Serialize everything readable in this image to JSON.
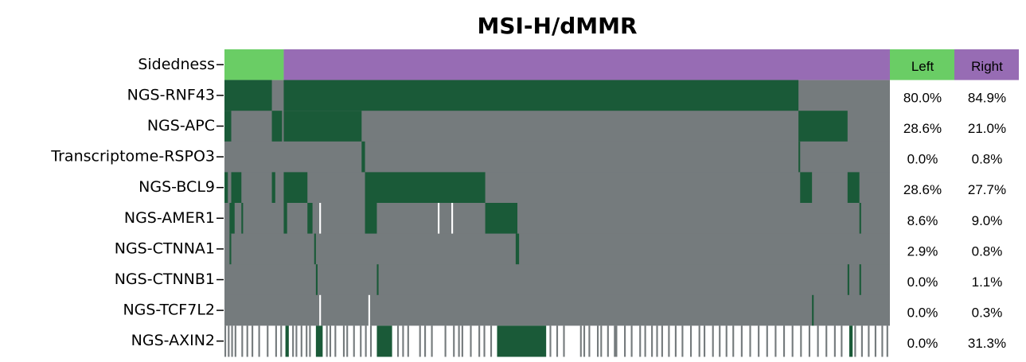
{
  "chart_data": {
    "type": "oncoprint",
    "title": "MSI-H/dMMR",
    "group_label": "Sidedness",
    "xlim": [
      0,
      393
    ],
    "status_colors": {
      "mut": "#1a5a38",
      "wt": "#757b7d",
      "na": "#ffffff"
    },
    "series": [
      {
        "name": "Left",
        "color": "#6acd65",
        "range": [
          0,
          35
        ],
        "values": [
          80.0,
          28.6,
          0.0,
          28.6,
          8.6,
          2.9,
          0.0,
          0.0,
          0.0
        ],
        "value_labels": [
          "80.0%",
          "28.6%",
          "0.0%",
          "28.6%",
          "8.6%",
          "2.9%",
          "0.0%",
          "0.0%",
          "0.0%"
        ]
      },
      {
        "name": "Right",
        "color": "#976cb4",
        "range": [
          35,
          393
        ],
        "values": [
          84.9,
          21.0,
          0.8,
          27.7,
          9.0,
          0.8,
          1.1,
          0.3,
          31.3
        ],
        "value_labels": [
          "84.9%",
          "21.0%",
          "0.8%",
          "27.7%",
          "9.0%",
          "0.8%",
          "1.1%",
          "0.3%",
          "31.3%"
        ]
      }
    ],
    "categories": [
      "NGS-RNF43",
      "NGS-APC",
      "Transcriptome-RSPO3",
      "NGS-BCL9",
      "NGS-AMER1",
      "NGS-CTNNA1",
      "NGS-CTNNB1",
      "NGS-TCF7L2",
      "NGS-AXIN2"
    ],
    "rows": [
      {
        "default": "wt",
        "segments": [
          [
            0,
            28,
            "mut"
          ],
          [
            35,
            339,
            "mut"
          ]
        ]
      },
      {
        "default": "wt",
        "segments": [
          [
            0,
            4,
            "mut"
          ],
          [
            28,
            34,
            "mut"
          ],
          [
            35,
            81,
            "mut"
          ],
          [
            339,
            368,
            "mut"
          ]
        ]
      },
      {
        "default": "wt",
        "segments": [
          [
            81,
            83,
            "mut"
          ],
          [
            339,
            340,
            "mut"
          ]
        ]
      },
      {
        "default": "wt",
        "segments": [
          [
            0,
            2,
            "mut"
          ],
          [
            4,
            10,
            "mut"
          ],
          [
            28,
            30,
            "mut"
          ],
          [
            35,
            49,
            "mut"
          ],
          [
            83,
            154,
            "mut"
          ],
          [
            340,
            347,
            "mut"
          ],
          [
            368,
            375,
            "mut"
          ]
        ]
      },
      {
        "default": "wt",
        "segments": [
          [
            3,
            6,
            "mut"
          ],
          [
            10,
            11,
            "mut"
          ],
          [
            35,
            37,
            "mut"
          ],
          [
            49,
            52,
            "mut"
          ],
          [
            83,
            90,
            "mut"
          ],
          [
            154,
            173,
            "mut"
          ],
          [
            375,
            376,
            "mut"
          ],
          [
            56,
            57,
            "na"
          ],
          [
            126,
            127,
            "na"
          ],
          [
            134,
            135,
            "na"
          ]
        ]
      },
      {
        "default": "wt",
        "segments": [
          [
            3,
            4,
            "mut"
          ],
          [
            53,
            54,
            "mut"
          ],
          [
            172,
            174,
            "mut"
          ]
        ]
      },
      {
        "default": "wt",
        "segments": [
          [
            54,
            55,
            "mut"
          ],
          [
            90,
            91,
            "mut"
          ],
          [
            368,
            369,
            "mut"
          ],
          [
            375,
            376,
            "mut"
          ]
        ]
      },
      {
        "default": "wt",
        "segments": [
          [
            56,
            57,
            "na"
          ],
          [
            85,
            86,
            "na"
          ],
          [
            347,
            348,
            "mut"
          ]
        ]
      },
      {
        "default": "na",
        "segments": [
          [
            0,
            1,
            "wt"
          ],
          [
            2,
            3,
            "wt"
          ],
          [
            4,
            5,
            "wt"
          ],
          [
            6,
            7,
            "wt"
          ],
          [
            10,
            11,
            "wt"
          ],
          [
            13,
            14,
            "wt"
          ],
          [
            16,
            17,
            "wt"
          ],
          [
            20,
            21,
            "wt"
          ],
          [
            25,
            26,
            "wt"
          ],
          [
            30,
            31,
            "wt"
          ],
          [
            33,
            34,
            "wt"
          ],
          [
            40,
            41,
            "wt"
          ],
          [
            42,
            43,
            "wt"
          ],
          [
            45,
            46,
            "wt"
          ],
          [
            48,
            49,
            "wt"
          ],
          [
            50,
            51,
            "wt"
          ],
          [
            60,
            61,
            "wt"
          ],
          [
            62,
            63,
            "wt"
          ],
          [
            65,
            66,
            "wt"
          ],
          [
            70,
            71,
            "wt"
          ],
          [
            72,
            73,
            "wt"
          ],
          [
            76,
            77,
            "wt"
          ],
          [
            80,
            81,
            "wt"
          ],
          [
            83,
            84,
            "wt"
          ],
          [
            86,
            87,
            "wt"
          ],
          [
            102,
            103,
            "wt"
          ],
          [
            105,
            106,
            "wt"
          ],
          [
            108,
            109,
            "wt"
          ],
          [
            115,
            116,
            "wt"
          ],
          [
            118,
            119,
            "wt"
          ],
          [
            122,
            123,
            "wt"
          ],
          [
            130,
            131,
            "wt"
          ],
          [
            135,
            136,
            "wt"
          ],
          [
            138,
            139,
            "wt"
          ],
          [
            140,
            141,
            "wt"
          ],
          [
            145,
            146,
            "wt"
          ],
          [
            150,
            151,
            "wt"
          ],
          [
            153,
            154,
            "wt"
          ],
          [
            157,
            158,
            "wt"
          ],
          [
            192,
            193,
            "wt"
          ],
          [
            196,
            197,
            "wt"
          ],
          [
            200,
            201,
            "wt"
          ],
          [
            210,
            211,
            "wt"
          ],
          [
            212,
            213,
            "wt"
          ],
          [
            215,
            216,
            "wt"
          ],
          [
            220,
            221,
            "wt"
          ],
          [
            222,
            223,
            "wt"
          ],
          [
            226,
            227,
            "wt"
          ],
          [
            230,
            232,
            "wt"
          ],
          [
            236,
            237,
            "wt"
          ],
          [
            240,
            241,
            "wt"
          ],
          [
            245,
            246,
            "wt"
          ],
          [
            248,
            249,
            "wt"
          ],
          [
            252,
            253,
            "wt"
          ],
          [
            255,
            256,
            "wt"
          ],
          [
            258,
            259,
            "wt"
          ],
          [
            262,
            263,
            "wt"
          ],
          [
            266,
            267,
            "wt"
          ],
          [
            270,
            271,
            "wt"
          ],
          [
            275,
            276,
            "wt"
          ],
          [
            280,
            281,
            "wt"
          ],
          [
            283,
            284,
            "wt"
          ],
          [
            288,
            289,
            "wt"
          ],
          [
            292,
            293,
            "wt"
          ],
          [
            296,
            297,
            "wt"
          ],
          [
            300,
            301,
            "wt"
          ],
          [
            305,
            306,
            "wt"
          ],
          [
            310,
            311,
            "wt"
          ],
          [
            315,
            316,
            "wt"
          ],
          [
            320,
            321,
            "wt"
          ],
          [
            325,
            326,
            "wt"
          ],
          [
            330,
            331,
            "wt"
          ],
          [
            335,
            336,
            "wt"
          ],
          [
            340,
            341,
            "wt"
          ],
          [
            345,
            346,
            "wt"
          ],
          [
            350,
            351,
            "wt"
          ],
          [
            355,
            356,
            "wt"
          ],
          [
            360,
            361,
            "wt"
          ],
          [
            364,
            365,
            "wt"
          ],
          [
            372,
            373,
            "wt"
          ],
          [
            376,
            377,
            "wt"
          ],
          [
            380,
            381,
            "wt"
          ],
          [
            384,
            385,
            "wt"
          ],
          [
            388,
            389,
            "wt"
          ],
          [
            391,
            392,
            "wt"
          ],
          [
            36,
            38,
            "mut"
          ],
          [
            54,
            58,
            "mut"
          ],
          [
            90,
            99,
            "mut"
          ],
          [
            161,
            190,
            "mut"
          ],
          [
            369,
            371,
            "mut"
          ]
        ]
      }
    ]
  }
}
